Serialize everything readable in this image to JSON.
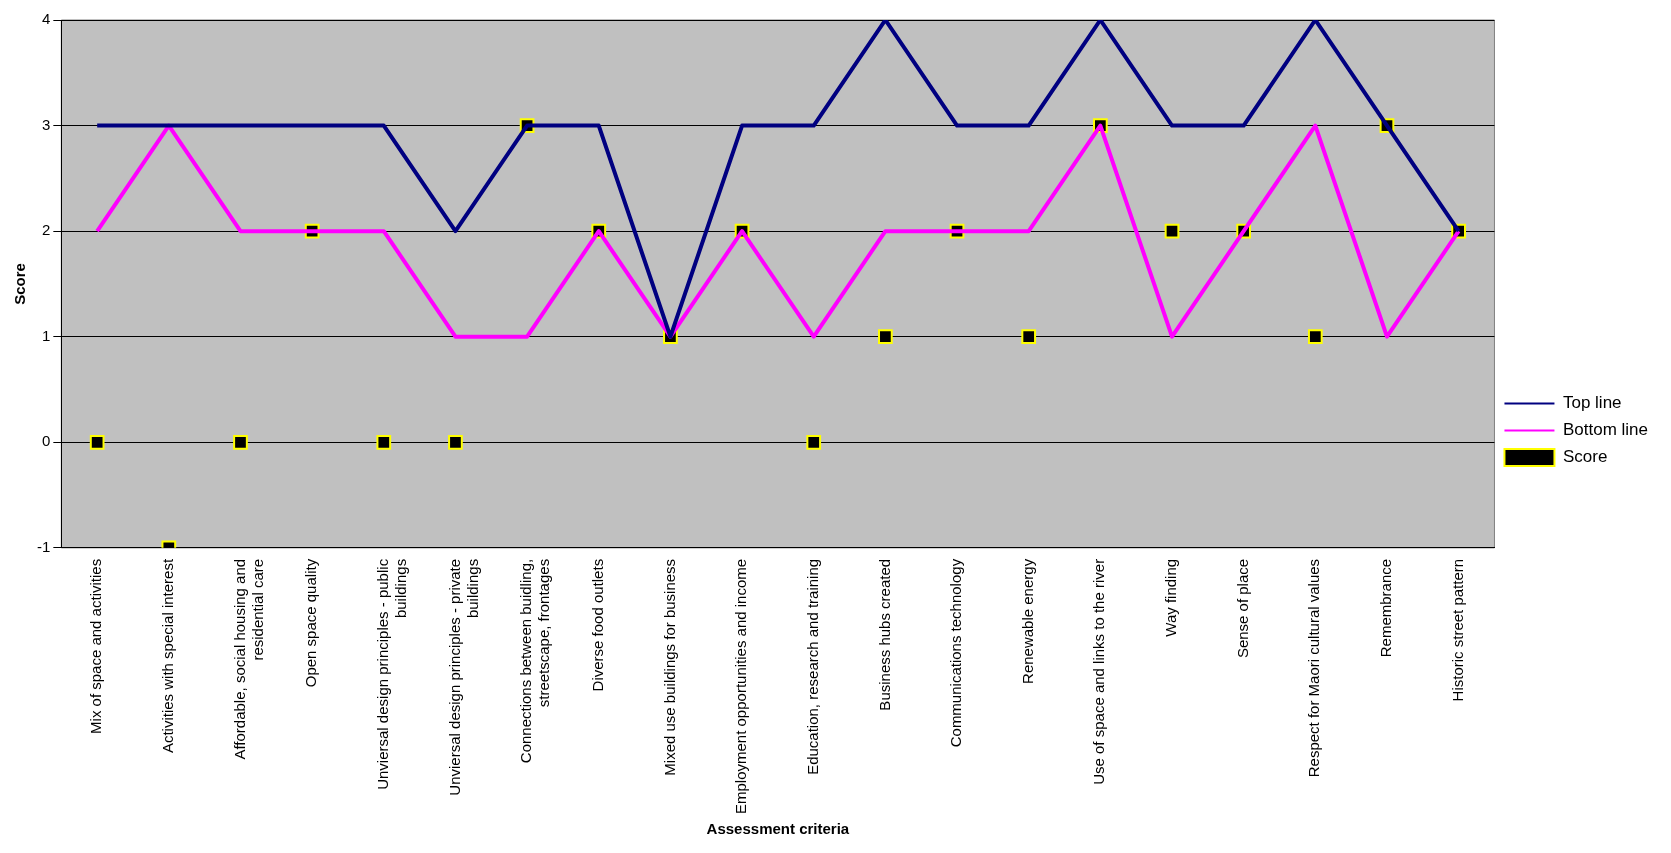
{
  "chart_data": {
    "type": "line",
    "xlabel": "Assessment criteria",
    "ylabel": "Score",
    "categories": [
      "Mix of space and activities",
      "Activities with special interest",
      "Affordable, social housing and residential care",
      "Open space quality",
      "Unviersal design principles - public buildings",
      "Unviersal design principles - private buildings",
      "Connections between buidling, streetscape, frontages",
      "Diverse food outlets",
      "Mixed use buildings for business",
      "Employment opportunities and income",
      "Education, research and training",
      "Business hubs created",
      "Communications technology",
      "Renewable energy",
      "Use of space and links to the river",
      "Way finding",
      "Sense of place",
      "Respect for Maori cultural values",
      "Remembrance",
      "Historic street pattern"
    ],
    "series": [
      {
        "name": "Top line",
        "color": "#000080",
        "marker": "none",
        "values": [
          3,
          3,
          3,
          3,
          3,
          2,
          3,
          3,
          1,
          3,
          3,
          4,
          3,
          3,
          4,
          3,
          3,
          4,
          3,
          2
        ]
      },
      {
        "name": "Bottom line",
        "color": "#ff00ff",
        "marker": "none",
        "values": [
          2,
          3,
          2,
          2,
          2,
          1,
          1,
          2,
          1,
          2,
          1,
          2,
          2,
          2,
          3,
          1,
          2,
          3,
          1,
          2
        ]
      },
      {
        "name": "Score",
        "type": "scatter",
        "color": "#000000",
        "marker": "square",
        "values": [
          0,
          -1,
          0,
          2,
          0,
          0,
          3,
          2,
          1,
          2,
          0,
          1,
          2,
          1,
          3,
          2,
          2,
          1,
          3,
          2
        ]
      }
    ],
    "ylim": [
      -1,
      4
    ],
    "yticks": [
      -1,
      0,
      1,
      2,
      3,
      4
    ],
    "grid": "y",
    "legend": "right"
  }
}
